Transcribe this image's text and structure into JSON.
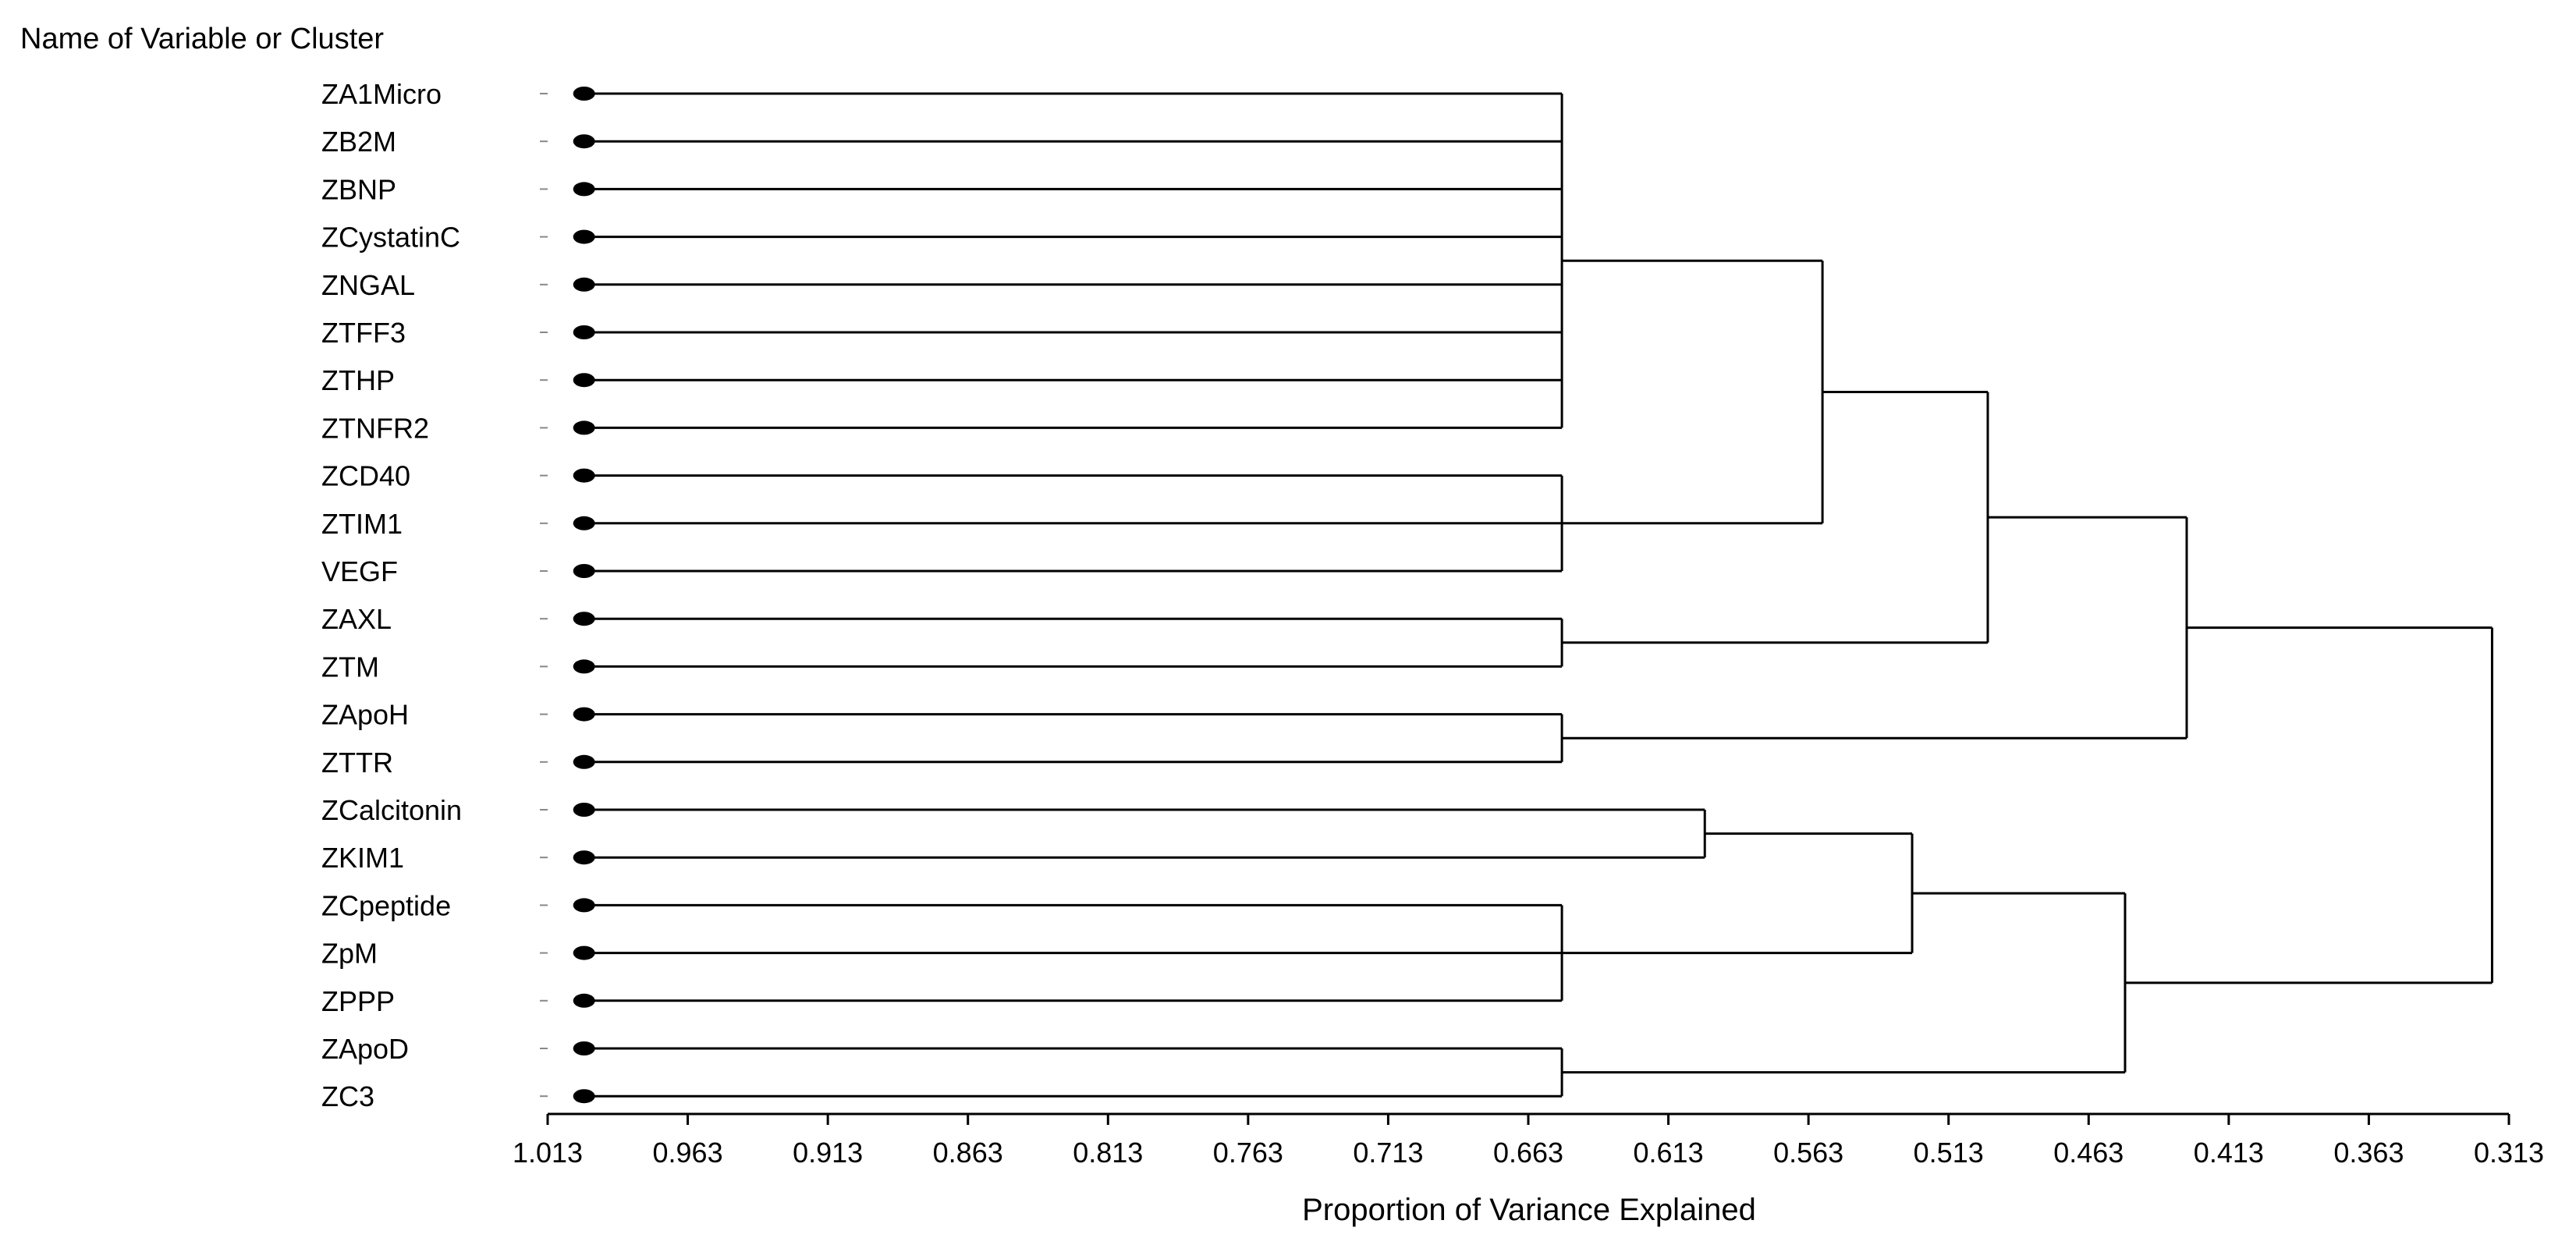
{
  "chart_data": {
    "type": "dendrogram",
    "title": "",
    "variable_axis_label": "Name of Variable or Cluster",
    "xlabel": "Proportion of Variance Explained",
    "x_ticks": [
      "1.013",
      "0.963",
      "0.913",
      "0.863",
      "0.813",
      "0.763",
      "0.713",
      "0.663",
      "0.613",
      "0.563",
      "0.513",
      "0.463",
      "0.413",
      "0.363",
      "0.313"
    ],
    "xlim": [
      1.013,
      0.313
    ],
    "x_reversed": true,
    "leaf_value": 1.0,
    "leaves": [
      "ZA1Micro",
      "ZB2M",
      "ZBNP",
      "ZCystatinC",
      "ZNGAL",
      "ZTFF3",
      "ZTHP",
      "ZTNFR2",
      "ZCD40",
      "ZTIM1",
      "VEGF",
      "ZAXL",
      "ZTM",
      "ZApoH",
      "ZTTR",
      "ZCalcitonin",
      "ZKIM1",
      "ZCpeptide",
      "ZpM",
      "ZPPP",
      "ZApoD",
      "ZC3"
    ],
    "merges": [
      {
        "id": "c1",
        "value": 0.651,
        "children": [
          "ZA1Micro",
          "ZB2M",
          "ZBNP",
          "ZCystatinC",
          "ZNGAL",
          "ZTFF3",
          "ZTHP",
          "ZTNFR2"
        ]
      },
      {
        "id": "c2",
        "value": 0.651,
        "children": [
          "ZCD40",
          "ZTIM1",
          "VEGF"
        ]
      },
      {
        "id": "c3",
        "value": 0.651,
        "children": [
          "ZAXL",
          "ZTM"
        ]
      },
      {
        "id": "c4",
        "value": 0.651,
        "children": [
          "ZApoH",
          "ZTTR"
        ]
      },
      {
        "id": "c5",
        "value": 0.651,
        "children": [
          "ZCpeptide",
          "ZpM",
          "ZPPP"
        ]
      },
      {
        "id": "c6",
        "value": 0.651,
        "children": [
          "ZApoD",
          "ZC3"
        ]
      },
      {
        "id": "c7",
        "value": 0.6,
        "children": [
          "ZCalcitonin",
          "ZKIM1"
        ]
      },
      {
        "id": "c8",
        "value": 0.558,
        "children": [
          "c1",
          "c2"
        ]
      },
      {
        "id": "c9",
        "value": 0.526,
        "children": [
          "c7",
          "c5"
        ]
      },
      {
        "id": "c10",
        "value": 0.499,
        "children": [
          "c8",
          "c3"
        ]
      },
      {
        "id": "c11",
        "value": 0.45,
        "children": [
          "c9",
          "c6"
        ]
      },
      {
        "id": "c12",
        "value": 0.428,
        "children": [
          "c10",
          "c4"
        ]
      },
      {
        "id": "c13",
        "value": 0.319,
        "children": [
          "c12",
          "c11"
        ]
      }
    ]
  }
}
